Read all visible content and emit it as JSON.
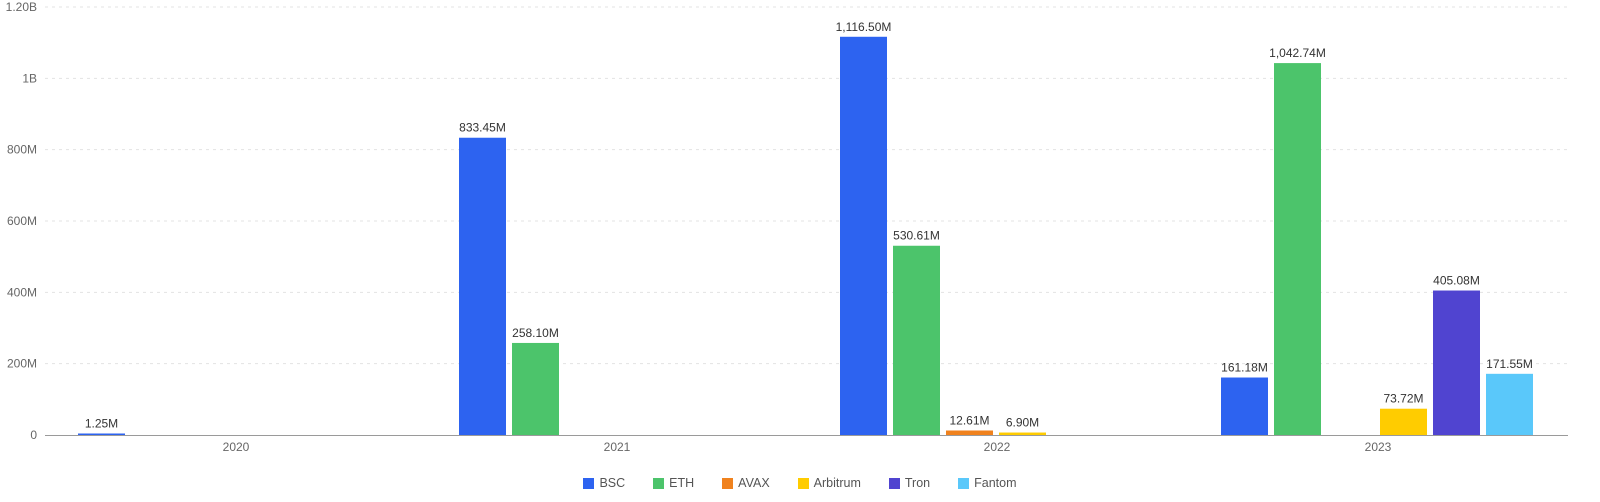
{
  "chart_data": {
    "type": "bar",
    "categories": [
      "2020",
      "2021",
      "2022",
      "2023"
    ],
    "series": [
      {
        "name": "BSC",
        "color": "#2d63f0",
        "values": [
          1.25,
          833.45,
          1116.5,
          161.18
        ],
        "labels": [
          "1.25M",
          "833.45M",
          "1,116.50M",
          "161.18M"
        ]
      },
      {
        "name": "ETH",
        "color": "#4cc46b",
        "values": [
          null,
          258.1,
          530.61,
          1042.74
        ],
        "labels": [
          "",
          "258.10M",
          "530.61M",
          "1,042.74M"
        ]
      },
      {
        "name": "AVAX",
        "color": "#f0821e",
        "values": [
          null,
          null,
          12.61,
          null
        ],
        "labels": [
          "",
          "",
          "12.61M",
          ""
        ]
      },
      {
        "name": "Arbitrum",
        "color": "#ffcc00",
        "values": [
          null,
          null,
          6.9,
          73.72
        ],
        "labels": [
          "",
          "",
          "6.90M",
          "73.72M"
        ]
      },
      {
        "name": "Tron",
        "color": "#5044d0",
        "values": [
          null,
          null,
          null,
          405.08
        ],
        "labels": [
          "",
          "",
          "",
          "405.08M"
        ]
      },
      {
        "name": "Fantom",
        "color": "#5ac8fa",
        "values": [
          null,
          null,
          null,
          171.55
        ],
        "labels": [
          "",
          "",
          "",
          "171.55M"
        ]
      }
    ],
    "y_unit": "M",
    "ylim": [
      0,
      1200
    ],
    "yticks": [
      0,
      200,
      400,
      600,
      800,
      1000,
      1200
    ],
    "ytick_labels": [
      "0",
      "200M",
      "400M",
      "600M",
      "800M",
      "1B",
      "1.20B"
    ],
    "grid": true,
    "legend": "bottom-center",
    "title": "",
    "xlabel": "",
    "ylabel": ""
  }
}
